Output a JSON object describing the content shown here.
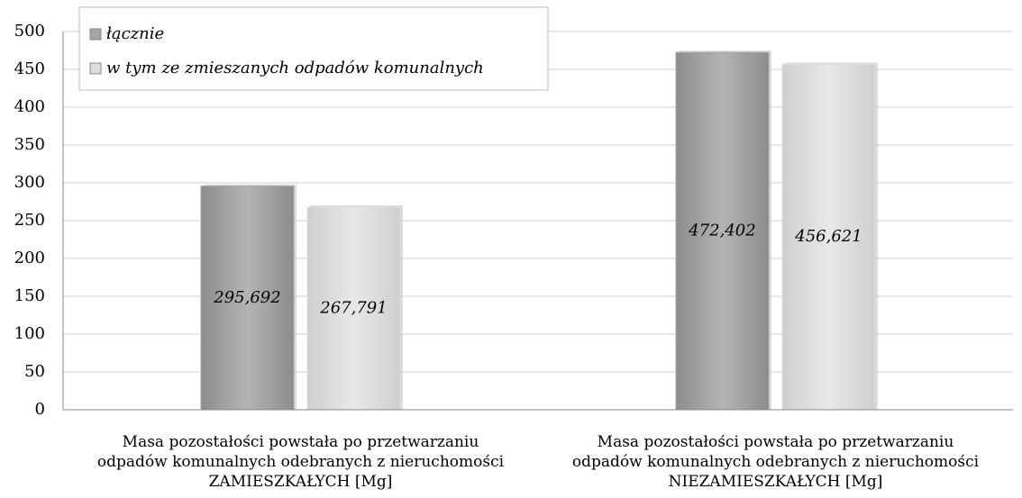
{
  "chart_data": {
    "type": "bar",
    "categories": [
      "Masa pozostałości powstała po przetwarzaniu odpadów komunalnych odebranych z nieruchomości ZAMIESZKAŁYCH [Mg]",
      "Masa pozostałości powstała po przetwarzaniu odpadów komunalnych odebranych z nieruchomości NIEZAMIESZKAŁYCH [Mg]"
    ],
    "series": [
      {
        "name": "łącznie",
        "color": "#a6a6a6",
        "values": [
          295.692,
          472.402
        ],
        "value_labels": [
          "295,692",
          "472,402"
        ]
      },
      {
        "name": "w tym ze zmieszanych odpadów komunalnych",
        "color": "#dcdcdc",
        "values": [
          267.791,
          456.621
        ],
        "value_labels": [
          "267,791",
          "456,621"
        ]
      }
    ],
    "ylim": [
      0,
      500
    ],
    "yticks": [
      0,
      50,
      100,
      150,
      200,
      250,
      300,
      350,
      400,
      450,
      500
    ],
    "grid": true,
    "legend": "top-left"
  }
}
